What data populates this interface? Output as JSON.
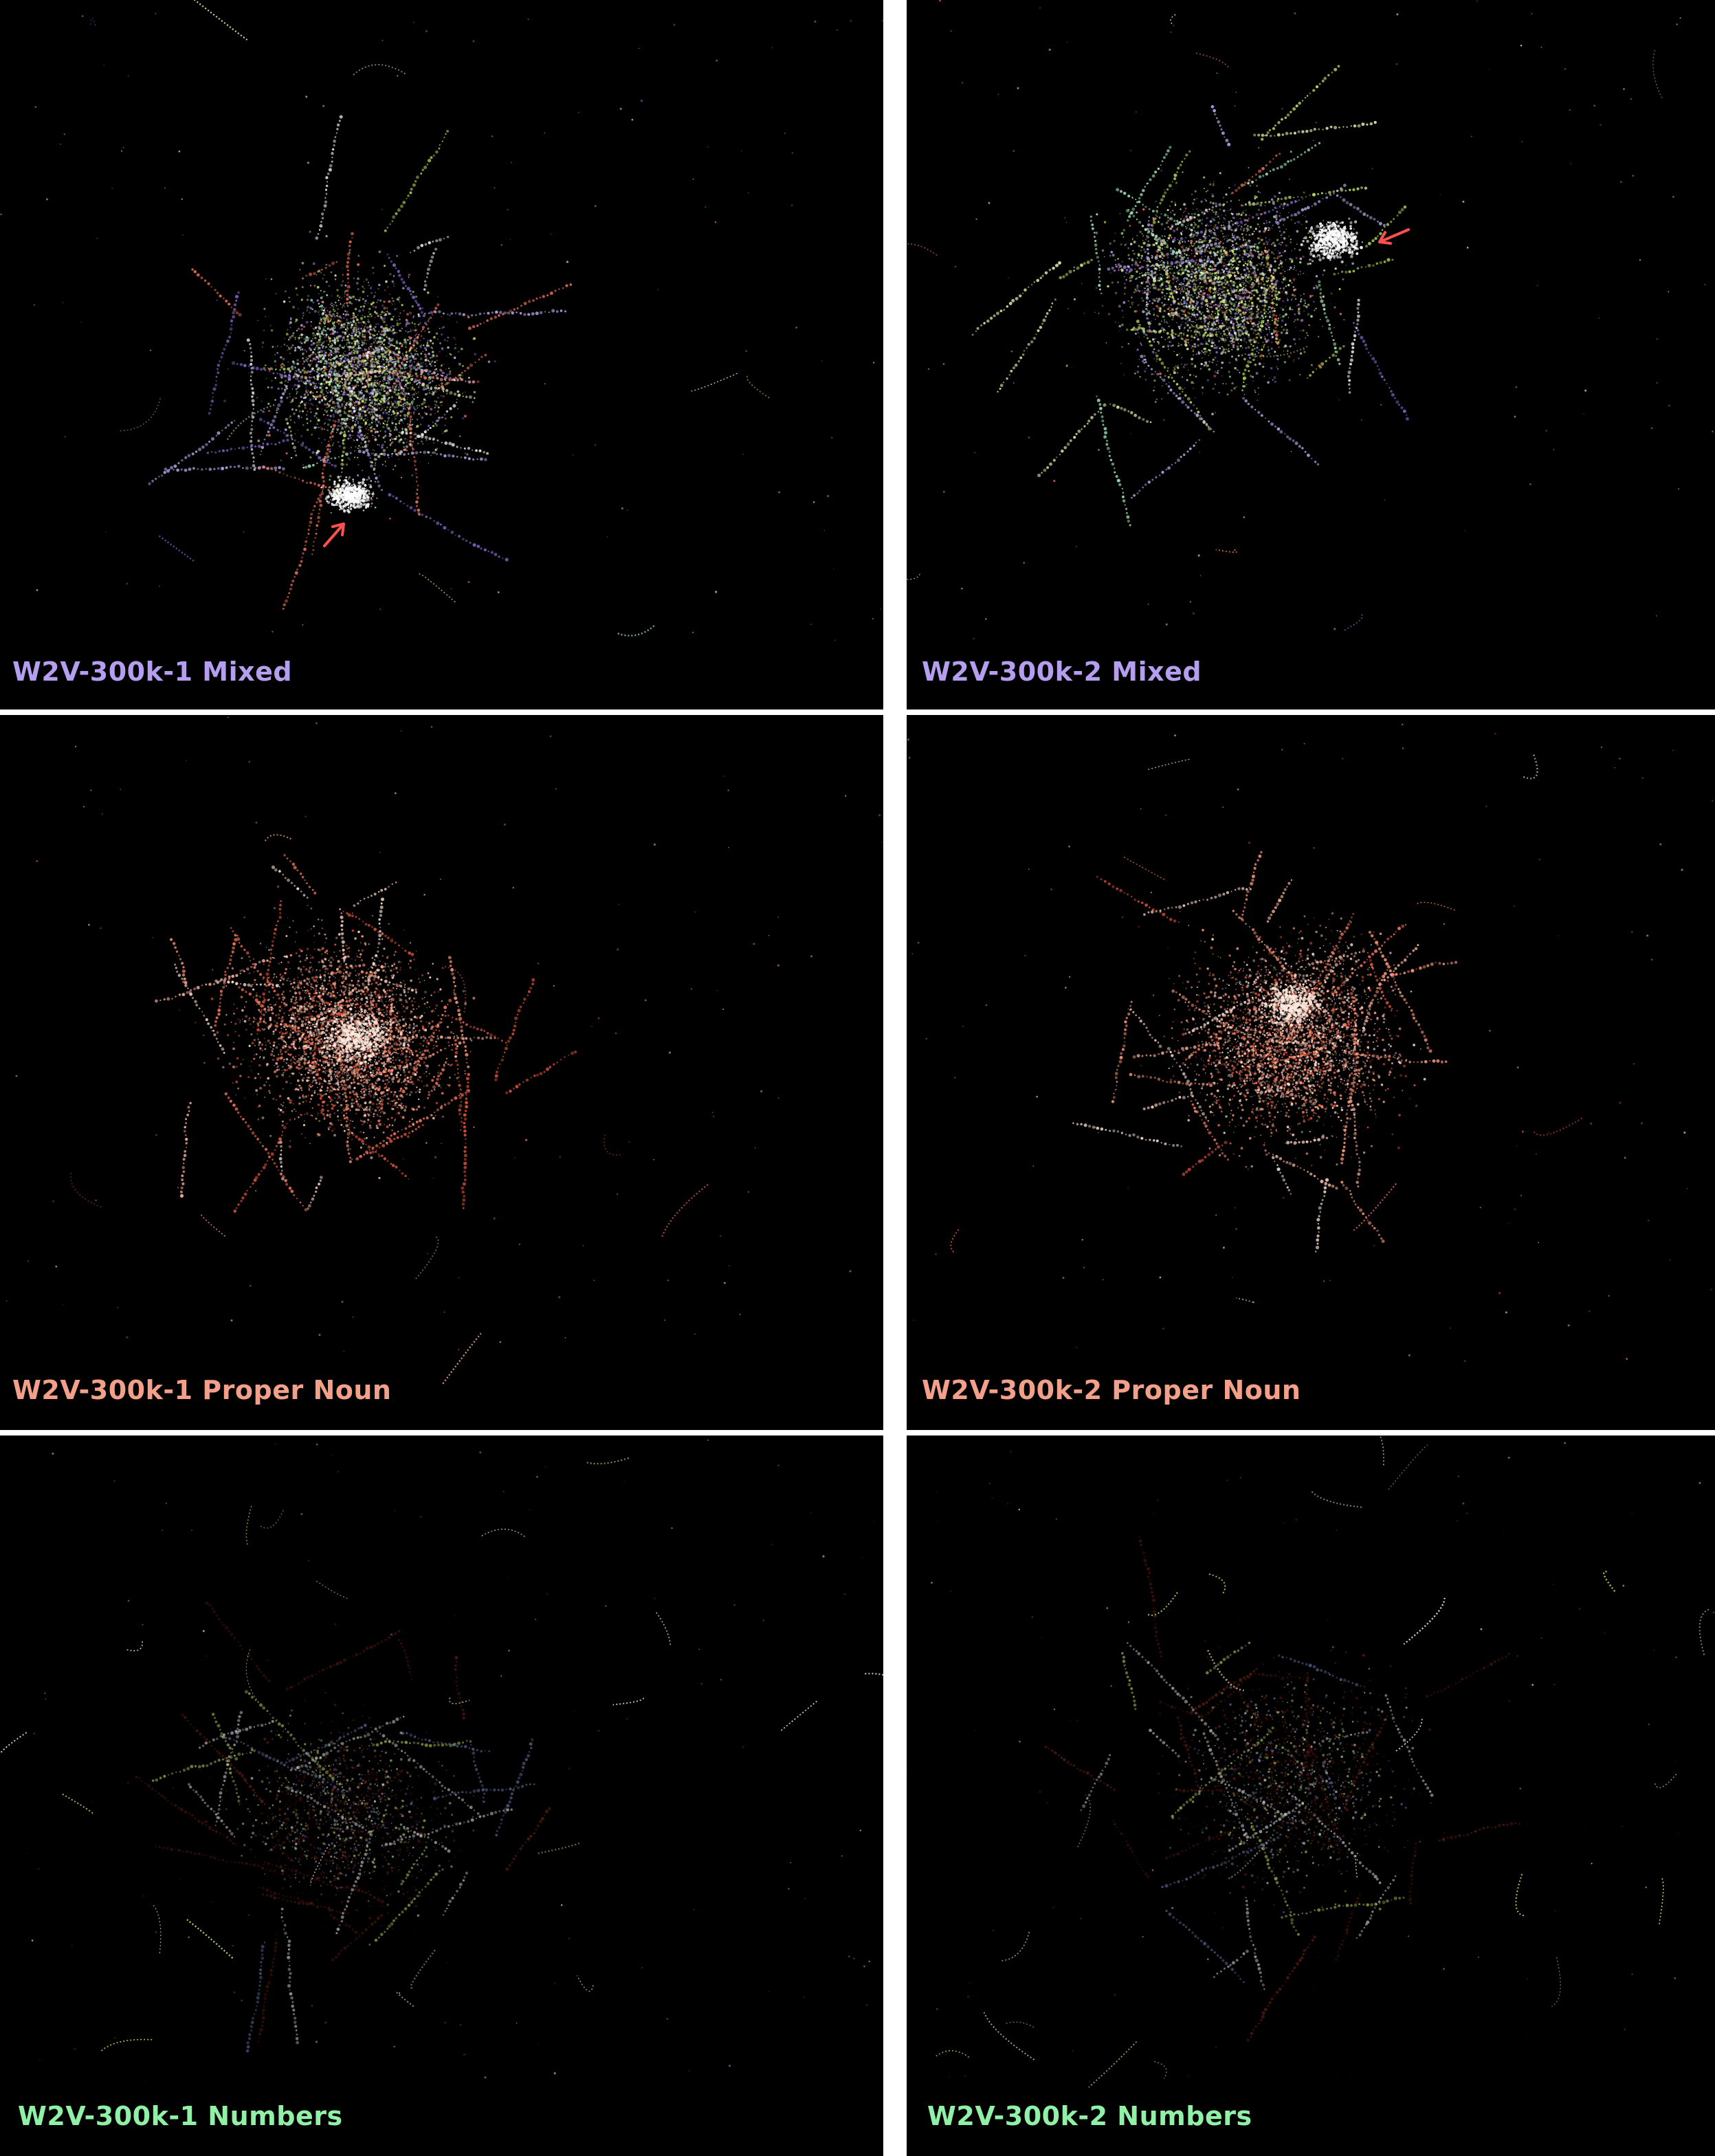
{
  "panels": [
    {
      "id": "p1",
      "label": "W2V-300k-1 Mixed",
      "label_color": "#b59ef0",
      "palette": [
        "#ffffff",
        "#f0ffb0",
        "#d9ff73",
        "#b7e35c",
        "#c9b6ff",
        "#8f6bd8",
        "#ff7a5c",
        "#b5ffcf"
      ],
      "arrow": true
    },
    {
      "id": "p2",
      "label": "W2V-300k-2 Mixed",
      "label_color": "#b59ef0",
      "palette": [
        "#ffffff",
        "#f0ffb0",
        "#d9ff73",
        "#b7e35c",
        "#c9b6ff",
        "#8f6bd8",
        "#ff7a5c",
        "#b5ffcf"
      ],
      "arrow": true
    },
    {
      "id": "p3",
      "label": "W2V-300k-1 Proper Noun",
      "label_color": "#f3a08a",
      "palette": [
        "#ffd4c4",
        "#ff9a7a",
        "#ff7a5c",
        "#e2553a",
        "#ffb8a0",
        "#ffe8dc"
      ],
      "arrow": false
    },
    {
      "id": "p4",
      "label": "W2V-300k-2 Proper Noun",
      "label_color": "#f3a08a",
      "palette": [
        "#ffd4c4",
        "#ff9a7a",
        "#ff7a5c",
        "#e2553a",
        "#ffb8a0",
        "#ffe8dc"
      ],
      "arrow": false
    },
    {
      "id": "p5",
      "label": "W2V-300k-1 Numbers",
      "label_color": "#8ff0a6",
      "palette": [
        "#6e1e14",
        "#8a2a1a",
        "#5a1810",
        "#d9ff73",
        "#ffffff",
        "#7b8cc8"
      ],
      "arrow": false
    },
    {
      "id": "p6",
      "label": "W2V-300k-2 Numbers",
      "label_color": "#8ff0a6",
      "palette": [
        "#6e1e14",
        "#8a2a1a",
        "#5a1810",
        "#d9ff73",
        "#ffffff",
        "#7b8cc8"
      ],
      "arrow": false
    }
  ],
  "colors": {
    "background": "#000000",
    "separator": "#ffffff",
    "arrow": "#ff5050"
  }
}
